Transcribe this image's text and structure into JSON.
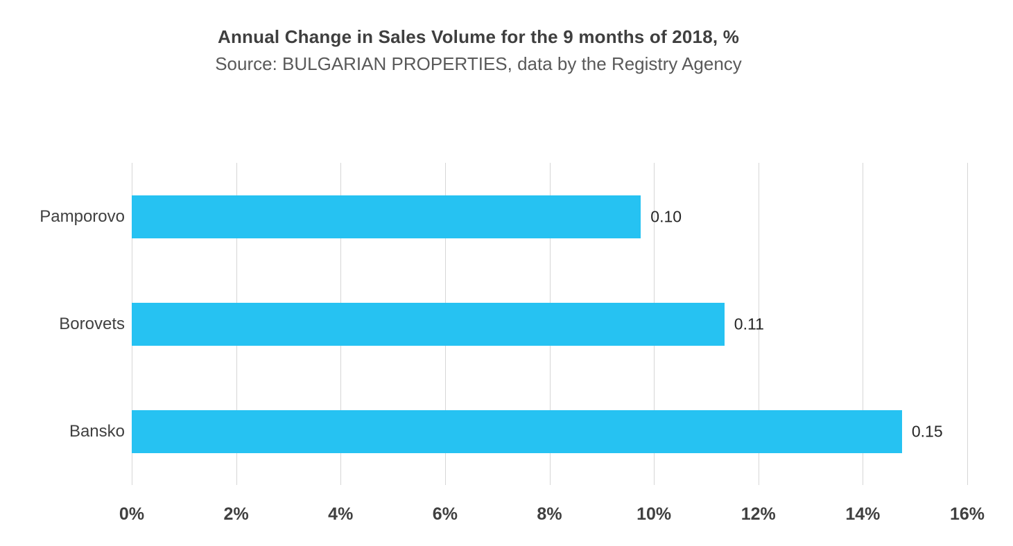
{
  "chart_data": {
    "type": "bar",
    "orientation": "horizontal",
    "title": "Annual Change in Sales Volume for the 9 months of 2018, %",
    "subtitle": "Source: BULGARIAN PROPERTIES, data by the Registry Agency",
    "categories_top_to_bottom": [
      "Pamporovo",
      "Borovets",
      "Bansko"
    ],
    "values_percent": [
      9.75,
      11.35,
      14.75
    ],
    "data_labels": [
      "0.10",
      "0.11",
      "0.15"
    ],
    "xlabel": "",
    "ylabel": "",
    "xlim": [
      0,
      16
    ],
    "x_ticks_percent": [
      0,
      2,
      4,
      6,
      8,
      10,
      12,
      14,
      16
    ],
    "x_tick_labels": [
      "0%",
      "2%",
      "4%",
      "6%",
      "8%",
      "10%",
      "12%",
      "14%",
      "16%"
    ],
    "grid": "vertical",
    "legend": "none",
    "bar_color": "#26c2f2",
    "gridline_color": "#d6d6d6"
  }
}
